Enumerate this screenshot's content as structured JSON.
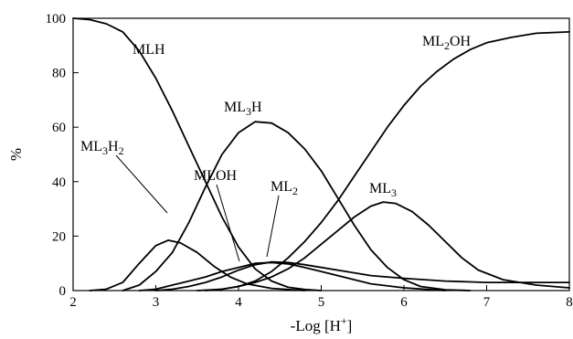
{
  "chart_data": {
    "type": "line",
    "title": "",
    "xlabel": "-Log [H⁺]",
    "ylabel": "%",
    "xlim": [
      2,
      8
    ],
    "ylim": [
      0,
      100
    ],
    "xticks": [
      2,
      3,
      4,
      5,
      6,
      7,
      8
    ],
    "yticks": [
      0,
      20,
      40,
      60,
      80,
      100
    ],
    "grid": false,
    "series": [
      {
        "name": "MLH",
        "points": [
          [
            2.0,
            100
          ],
          [
            2.2,
            99.5
          ],
          [
            2.4,
            98
          ],
          [
            2.6,
            95
          ],
          [
            2.8,
            88
          ],
          [
            3.0,
            78
          ],
          [
            3.2,
            66
          ],
          [
            3.4,
            53
          ],
          [
            3.6,
            40
          ],
          [
            3.8,
            27
          ],
          [
            4.0,
            16
          ],
          [
            4.2,
            8
          ],
          [
            4.4,
            3.5
          ],
          [
            4.6,
            1.2
          ],
          [
            4.8,
            0.4
          ],
          [
            5.0,
            0
          ]
        ]
      },
      {
        "name": "ML3H2",
        "points": [
          [
            2.2,
            0
          ],
          [
            2.4,
            0.5
          ],
          [
            2.6,
            3
          ],
          [
            2.8,
            10
          ],
          [
            3.0,
            16.5
          ],
          [
            3.15,
            18.5
          ],
          [
            3.3,
            17.5
          ],
          [
            3.5,
            14
          ],
          [
            3.7,
            9
          ],
          [
            3.9,
            5
          ],
          [
            4.1,
            2.5
          ],
          [
            4.4,
            0.8
          ],
          [
            4.8,
            0
          ]
        ]
      },
      {
        "name": "ML3H",
        "points": [
          [
            2.6,
            0
          ],
          [
            2.8,
            2
          ],
          [
            3.0,
            7
          ],
          [
            3.2,
            14
          ],
          [
            3.4,
            25
          ],
          [
            3.6,
            38
          ],
          [
            3.8,
            50
          ],
          [
            4.0,
            58
          ],
          [
            4.2,
            62
          ],
          [
            4.4,
            61.5
          ],
          [
            4.6,
            58
          ],
          [
            4.8,
            52
          ],
          [
            5.0,
            44
          ],
          [
            5.2,
            34
          ],
          [
            5.4,
            24
          ],
          [
            5.6,
            15
          ],
          [
            5.8,
            8.5
          ],
          [
            6.0,
            4
          ],
          [
            6.2,
            1.5
          ],
          [
            6.5,
            0.3
          ],
          [
            6.8,
            0
          ]
        ]
      },
      {
        "name": "MLOH",
        "points": [
          [
            2.8,
            0
          ],
          [
            3.0,
            0.5
          ],
          [
            3.2,
            2
          ],
          [
            3.4,
            3.5
          ],
          [
            3.6,
            5
          ],
          [
            3.8,
            7
          ],
          [
            4.0,
            8.5
          ],
          [
            4.2,
            10
          ],
          [
            4.4,
            10.3
          ],
          [
            4.6,
            9.8
          ],
          [
            4.8,
            8.5
          ],
          [
            5.0,
            7
          ],
          [
            5.2,
            5.5
          ],
          [
            5.4,
            4
          ],
          [
            5.6,
            2.5
          ],
          [
            6.0,
            1
          ],
          [
            6.5,
            0
          ]
        ]
      },
      {
        "name": "ML2",
        "points": [
          [
            3.0,
            0
          ],
          [
            3.2,
            0.5
          ],
          [
            3.4,
            1.5
          ],
          [
            3.6,
            3
          ],
          [
            3.8,
            5
          ],
          [
            4.0,
            7.5
          ],
          [
            4.2,
            9.5
          ],
          [
            4.4,
            10.5
          ],
          [
            4.6,
            10.3
          ],
          [
            4.8,
            9.5
          ],
          [
            5.0,
            8.5
          ],
          [
            5.3,
            7
          ],
          [
            5.6,
            5.5
          ],
          [
            6.0,
            4.5
          ],
          [
            6.5,
            3.5
          ],
          [
            7.0,
            3
          ],
          [
            7.5,
            3
          ],
          [
            8.0,
            3
          ]
        ]
      },
      {
        "name": "ML3",
        "points": [
          [
            3.5,
            0
          ],
          [
            3.8,
            0.5
          ],
          [
            4.0,
            1.5
          ],
          [
            4.2,
            3
          ],
          [
            4.4,
            5
          ],
          [
            4.6,
            8
          ],
          [
            4.8,
            12
          ],
          [
            5.0,
            17
          ],
          [
            5.2,
            22
          ],
          [
            5.4,
            27
          ],
          [
            5.6,
            31
          ],
          [
            5.75,
            32.5
          ],
          [
            5.9,
            32
          ],
          [
            6.1,
            29
          ],
          [
            6.3,
            24
          ],
          [
            6.5,
            18
          ],
          [
            6.7,
            12
          ],
          [
            6.9,
            7.5
          ],
          [
            7.2,
            4
          ],
          [
            7.6,
            2
          ],
          [
            8.0,
            1
          ]
        ]
      },
      {
        "name": "ML2OH",
        "points": [
          [
            3.6,
            0
          ],
          [
            3.8,
            0.5
          ],
          [
            4.0,
            1.5
          ],
          [
            4.2,
            3.5
          ],
          [
            4.4,
            7
          ],
          [
            4.6,
            12
          ],
          [
            4.8,
            18
          ],
          [
            5.0,
            25
          ],
          [
            5.2,
            33
          ],
          [
            5.4,
            42
          ],
          [
            5.6,
            51
          ],
          [
            5.8,
            60
          ],
          [
            6.0,
            68
          ],
          [
            6.2,
            75
          ],
          [
            6.4,
            80.5
          ],
          [
            6.6,
            85
          ],
          [
            6.8,
            88.5
          ],
          [
            7.0,
            91
          ],
          [
            7.3,
            93
          ],
          [
            7.6,
            94.5
          ],
          [
            8.0,
            95
          ]
        ]
      }
    ],
    "annotations": [
      {
        "main": "MLH",
        "sub": ""
      },
      {
        "main": "ML",
        "sub": "3",
        "rest": "H"
      },
      {
        "main": "ML",
        "sub": "2",
        "rest": "OH"
      },
      {
        "main": "ML",
        "sub": "3",
        "rest": "H",
        "sub2": "2"
      },
      {
        "main": "MLOH",
        "sub": ""
      },
      {
        "main": "ML",
        "sub": "2"
      },
      {
        "main": "ML",
        "sub": "3"
      }
    ],
    "axis_titles": {
      "x_main": "-Log [H",
      "x_sup": "+",
      "x_end": "]",
      "y": "%"
    }
  }
}
